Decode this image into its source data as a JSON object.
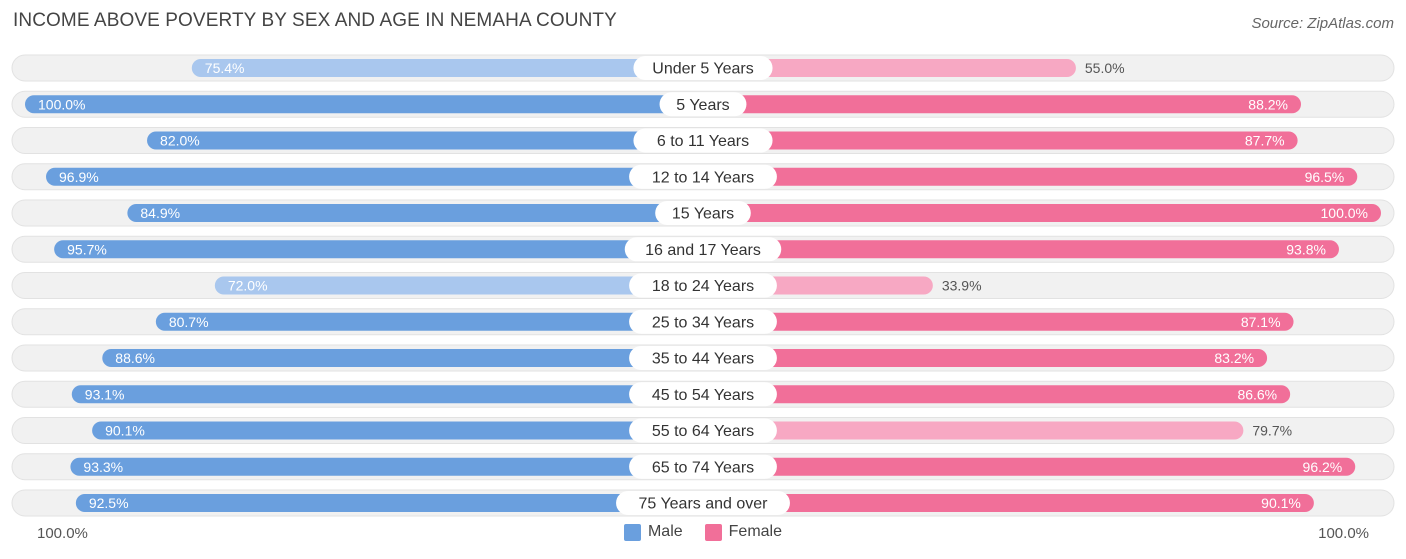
{
  "title": "INCOME ABOVE POVERTY BY SEX AND AGE IN NEMAHA COUNTY",
  "source": "Source: ZipAtlas.com",
  "axis": {
    "left_label": "100.0%",
    "right_label": "100.0%"
  },
  "legend": [
    {
      "label": "Male",
      "color": "#6a9fde"
    },
    {
      "label": "Female",
      "color": "#f16f99"
    }
  ],
  "colors": {
    "male_strong": "#6a9fde",
    "male_light": "#a9c7ee",
    "female_strong": "#f16f99",
    "female_light": "#f7a8c3",
    "track": "#f1f1f1"
  },
  "chart_data": {
    "type": "bar",
    "orientation": "horizontal-diverging",
    "title": "INCOME ABOVE POVERTY BY SEX AND AGE IN NEMAHA COUNTY",
    "xlim": [
      0,
      100
    ],
    "unit": "%",
    "categories": [
      "Under 5 Years",
      "5 Years",
      "6 to 11 Years",
      "12 to 14 Years",
      "15 Years",
      "16 and 17 Years",
      "18 to 24 Years",
      "25 to 34 Years",
      "35 to 44 Years",
      "45 to 54 Years",
      "55 to 64 Years",
      "65 to 74 Years",
      "75 Years and over"
    ],
    "series": [
      {
        "name": "Male",
        "values": [
          75.4,
          100.0,
          82.0,
          96.9,
          84.9,
          95.7,
          72.0,
          80.7,
          88.6,
          93.1,
          90.1,
          93.3,
          92.5
        ],
        "labels": [
          "75.4%",
          "100.0%",
          "82.0%",
          "96.9%",
          "84.9%",
          "95.7%",
          "72.0%",
          "80.7%",
          "88.6%",
          "93.1%",
          "90.1%",
          "93.3%",
          "92.5%"
        ]
      },
      {
        "name": "Female",
        "values": [
          55.0,
          88.2,
          87.7,
          96.5,
          100.0,
          93.8,
          33.9,
          87.1,
          83.2,
          86.6,
          79.7,
          96.2,
          90.1
        ],
        "labels": [
          "55.0%",
          "88.2%",
          "87.7%",
          "96.5%",
          "100.0%",
          "93.8%",
          "33.9%",
          "87.1%",
          "83.2%",
          "86.6%",
          "79.7%",
          "96.2%",
          "90.1%"
        ]
      }
    ]
  }
}
